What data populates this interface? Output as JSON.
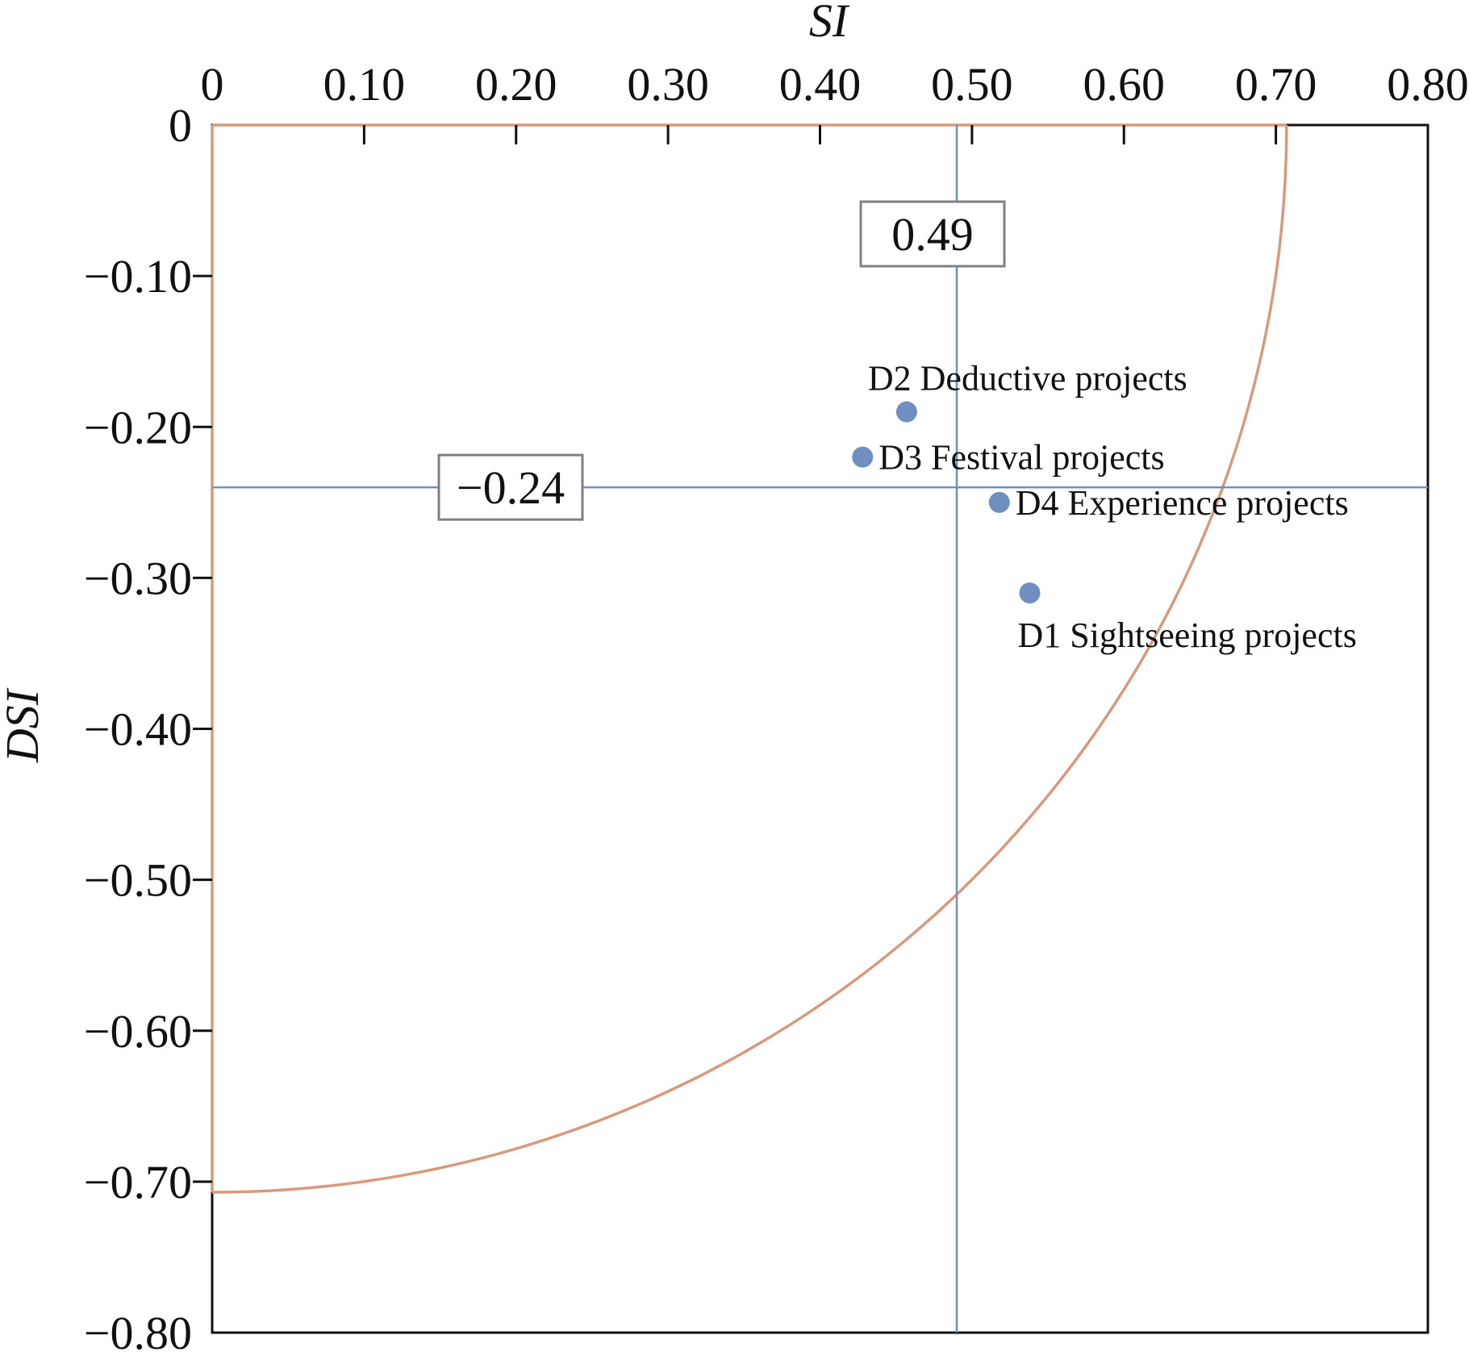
{
  "chart_data": {
    "type": "scatter",
    "xlabel": "SI",
    "ylabel": "DSI",
    "xlim": [
      0,
      0.8
    ],
    "ylim": [
      -0.8,
      0
    ],
    "x_axis_position": "top",
    "x_ticks": [
      0,
      0.1,
      0.2,
      0.3,
      0.4,
      0.5,
      0.6,
      0.7,
      0.8
    ],
    "x_tick_labels": [
      "0",
      "0.10",
      "0.20",
      "0.30",
      "0.40",
      "0.50",
      "0.60",
      "0.70",
      "0.80"
    ],
    "y_ticks": [
      0,
      -0.1,
      -0.2,
      -0.3,
      -0.4,
      -0.5,
      -0.6,
      -0.7,
      -0.8
    ],
    "y_tick_labels": [
      "0",
      "−0.10",
      "−0.20",
      "−0.30",
      "−0.40",
      "−0.50",
      "−0.60",
      "−0.70",
      "−0.80"
    ],
    "grid": false,
    "points": [
      {
        "label": "D2 Deductive projects",
        "x": 0.457,
        "y": -0.19,
        "label_position": "above"
      },
      {
        "label": "D3 Festival projects",
        "x": 0.428,
        "y": -0.22,
        "label_position": "right"
      },
      {
        "label": "D4 Experience projects",
        "x": 0.518,
        "y": -0.25,
        "label_position": "right"
      },
      {
        "label": "D1 Sightseeing projects",
        "x": 0.538,
        "y": -0.31,
        "label_position": "below"
      }
    ],
    "reference_lines": [
      {
        "orientation": "vertical",
        "value": 0.49,
        "label": "0.49"
      },
      {
        "orientation": "horizontal",
        "value": -0.24,
        "label": "−0.24"
      }
    ],
    "curve": {
      "type": "quarter-circle",
      "radius": 0.707
    },
    "colors": {
      "points": "#6e8fbf",
      "reference_lines": "#6e8fbf",
      "curve": "#d79a7d",
      "axes": "#111111",
      "label_box_border": "#808080"
    }
  }
}
